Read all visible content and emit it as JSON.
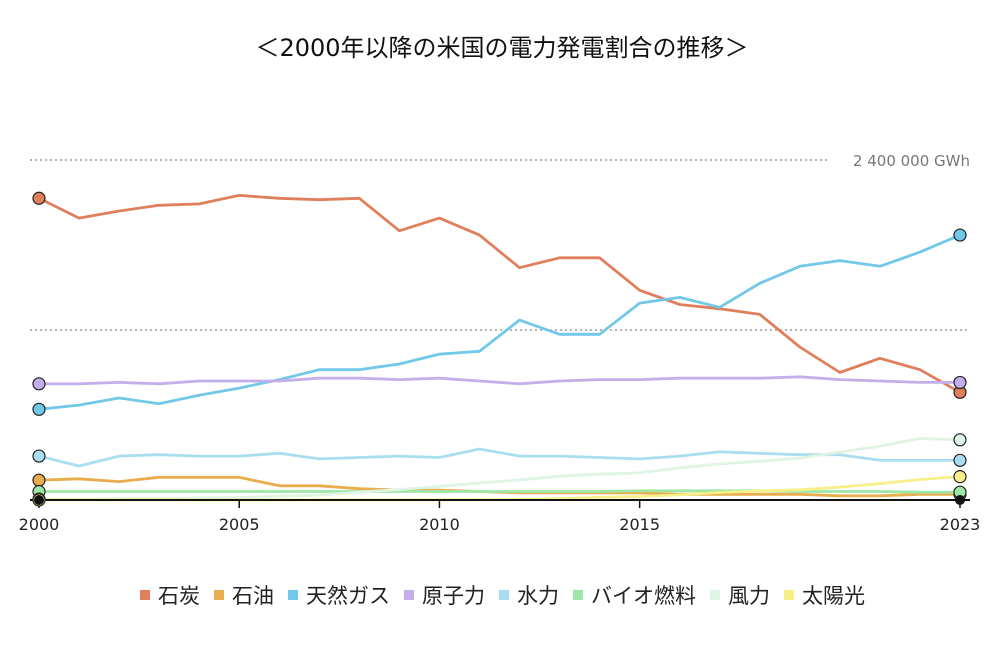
{
  "chart_data": {
    "type": "line",
    "title": "＜2000年以降の米国の電力発電割合の推移＞",
    "x": [
      2000,
      2001,
      2002,
      2003,
      2004,
      2005,
      2006,
      2007,
      2008,
      2009,
      2010,
      2011,
      2012,
      2013,
      2014,
      2015,
      2016,
      2017,
      2018,
      2019,
      2020,
      2021,
      2022,
      2023
    ],
    "x_ticks": [
      "2000",
      "2005",
      "2010",
      "2015",
      "2023"
    ],
    "ylim": [
      0,
      2400000
    ],
    "reference_line": {
      "value": 2400000,
      "label": "2 400 000 GWh"
    },
    "grid": "dotted horizontal",
    "legend_position": "bottom",
    "series": [
      {
        "name": "石炭",
        "color": "#e07f5b",
        "values": [
          2130000,
          1990000,
          2040000,
          2080000,
          2090000,
          2150000,
          2130000,
          2120000,
          2130000,
          1900000,
          1990000,
          1870000,
          1640000,
          1710000,
          1710000,
          1480000,
          1380000,
          1350000,
          1310000,
          1080000,
          900000,
          1000000,
          920000,
          760000
        ]
      },
      {
        "name": "石油",
        "color": "#e8ad4c",
        "values": [
          140000,
          150000,
          130000,
          160000,
          160000,
          160000,
          100000,
          100000,
          80000,
          70000,
          70000,
          60000,
          50000,
          50000,
          50000,
          50000,
          40000,
          40000,
          40000,
          40000,
          30000,
          30000,
          40000,
          40000
        ]
      },
      {
        "name": "天然ガス",
        "color": "#72c8e8",
        "values": [
          640000,
          670000,
          720000,
          680000,
          740000,
          790000,
          850000,
          920000,
          920000,
          960000,
          1030000,
          1050000,
          1270000,
          1170000,
          1170000,
          1390000,
          1430000,
          1360000,
          1530000,
          1650000,
          1690000,
          1650000,
          1750000,
          1870000
        ]
      },
      {
        "name": "原子力",
        "color": "#c3b0ea",
        "values": [
          820000,
          820000,
          830000,
          820000,
          840000,
          840000,
          840000,
          860000,
          860000,
          850000,
          860000,
          840000,
          820000,
          840000,
          850000,
          850000,
          860000,
          860000,
          860000,
          870000,
          850000,
          840000,
          830000,
          830000
        ]
      },
      {
        "name": "水力",
        "color": "#a9def0",
        "values": [
          310000,
          240000,
          310000,
          320000,
          310000,
          310000,
          330000,
          290000,
          300000,
          310000,
          300000,
          360000,
          310000,
          310000,
          300000,
          290000,
          310000,
          340000,
          330000,
          320000,
          320000,
          280000,
          280000,
          280000
        ]
      },
      {
        "name": "バイオ燃料",
        "color": "#9ee6a6",
        "values": [
          60000,
          60000,
          60000,
          60000,
          60000,
          60000,
          60000,
          60000,
          60000,
          60000,
          60000,
          60000,
          60000,
          60000,
          60000,
          65000,
          65000,
          65000,
          65000,
          60000,
          60000,
          60000,
          55000,
          55000
        ]
      },
      {
        "name": "風力",
        "color": "#dff4e4",
        "values": [
          6000,
          7000,
          10000,
          11000,
          14000,
          18000,
          27000,
          35000,
          55000,
          74000,
          95000,
          120000,
          141000,
          168000,
          182000,
          191000,
          227000,
          254000,
          273000,
          296000,
          338000,
          380000,
          434000,
          425000
        ]
      },
      {
        "name": "太陽光",
        "color": "#f7ef87",
        "values": [
          500,
          500,
          500,
          500,
          600,
          600,
          500,
          600,
          900,
          900,
          1200,
          1800,
          4300,
          9000,
          18000,
          25000,
          36000,
          53000,
          64000,
          72000,
          91000,
          115000,
          145000,
          165000
        ]
      }
    ]
  }
}
